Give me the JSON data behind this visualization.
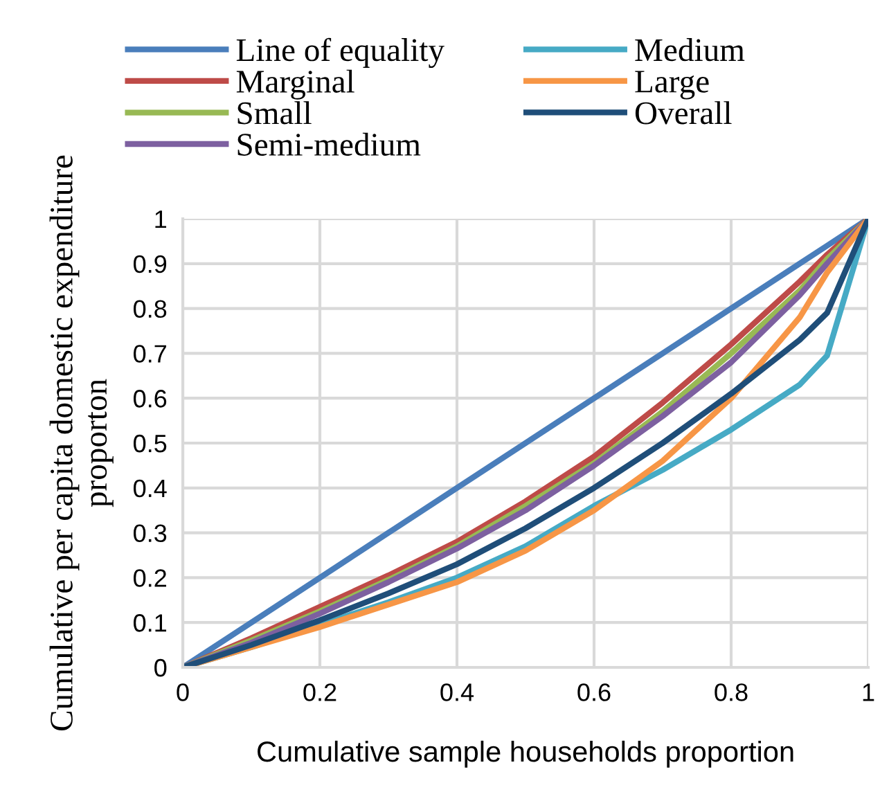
{
  "chart_data": {
    "type": "line",
    "xlabel": "Cumulative sample households proportion",
    "ylabel": "Cumulative per capita domestic expenditure\nproporton",
    "x": [
      0,
      0.1,
      0.2,
      0.3,
      0.4,
      0.5,
      0.6,
      0.7,
      0.8,
      0.9,
      0.94,
      1
    ],
    "series": [
      {
        "name": "Line of equality",
        "color": "#4a7ebb",
        "values": [
          0,
          0.1,
          0.2,
          0.3,
          0.4,
          0.5,
          0.6,
          0.7,
          0.8,
          0.9,
          0.94,
          1
        ]
      },
      {
        "name": "Marginal",
        "color": "#be4b48",
        "values": [
          0,
          0.065,
          0.135,
          0.205,
          0.28,
          0.37,
          0.47,
          0.59,
          0.72,
          0.86,
          0.92,
          1
        ]
      },
      {
        "name": "Small",
        "color": "#98b954",
        "values": [
          0,
          0.06,
          0.125,
          0.195,
          0.27,
          0.36,
          0.455,
          0.57,
          0.7,
          0.84,
          0.91,
          1
        ]
      },
      {
        "name": "Semi-medium",
        "color": "#7d60a0",
        "values": [
          0,
          0.055,
          0.12,
          0.19,
          0.265,
          0.35,
          0.45,
          0.56,
          0.68,
          0.83,
          0.9,
          1
        ]
      },
      {
        "name": "Medium",
        "color": "#46aac5",
        "values": [
          0,
          0.045,
          0.095,
          0.145,
          0.2,
          0.27,
          0.36,
          0.44,
          0.53,
          0.63,
          0.695,
          1
        ]
      },
      {
        "name": "Large",
        "color": "#f79646",
        "values": [
          0,
          0.045,
          0.09,
          0.14,
          0.19,
          0.26,
          0.35,
          0.46,
          0.6,
          0.78,
          0.88,
          1
        ]
      },
      {
        "name": "Overall",
        "color": "#1f4e79",
        "values": [
          0,
          0.05,
          0.105,
          0.165,
          0.23,
          0.31,
          0.4,
          0.5,
          0.61,
          0.73,
          0.79,
          1
        ]
      }
    ],
    "xlim": [
      0,
      1
    ],
    "ylim": [
      0,
      1
    ],
    "xticks": [
      0,
      0.2,
      0.4,
      0.6,
      0.8,
      1
    ],
    "yticks": [
      0,
      0.1,
      0.2,
      0.3,
      0.4,
      0.5,
      0.6,
      0.7,
      0.8,
      0.9,
      1
    ],
    "grid": true,
    "legend": "top",
    "marker": "none",
    "line_style": "solid"
  }
}
